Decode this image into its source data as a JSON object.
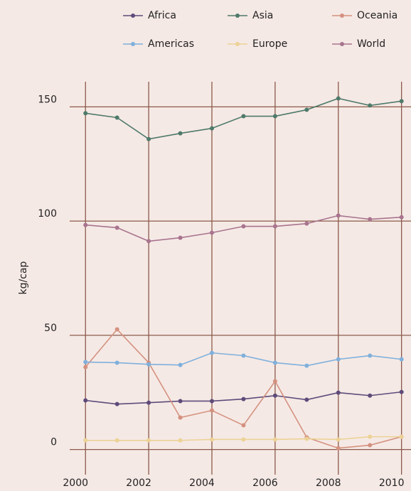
{
  "chart_data": {
    "type": "line",
    "x": [
      2000,
      2001,
      2002,
      2003,
      2004,
      2005,
      2006,
      2007,
      2008,
      2009,
      2010
    ],
    "y_label": "kg/cap",
    "series": [
      {
        "name": "Africa",
        "color": "#5e4b7a",
        "values": [
          21.5,
          19.9,
          20.5,
          21.2,
          21.2,
          22.1,
          23.6,
          21.8,
          24.9,
          23.6,
          25.2
        ]
      },
      {
        "name": "Asia",
        "color": "#4e7a6a",
        "values": [
          147.2,
          145.3,
          135.9,
          138.4,
          140.6,
          145.9,
          145.9,
          148.7,
          153.7,
          150.6,
          152.5
        ]
      },
      {
        "name": "Oceania",
        "color": "#d4917f",
        "values": [
          36.1,
          52.6,
          38.0,
          14.0,
          17.1,
          10.6,
          29.9,
          5.3,
          0.6,
          1.9,
          5.6
        ]
      },
      {
        "name": "Americas",
        "color": "#7fb0dc",
        "values": [
          38.3,
          38.0,
          37.3,
          37.0,
          42.3,
          41.1,
          38.0,
          36.7,
          39.5,
          41.1,
          39.5
        ]
      },
      {
        "name": "Europe",
        "color": "#ecd296",
        "values": [
          4.0,
          4.0,
          4.0,
          4.0,
          4.4,
          4.4,
          4.4,
          4.7,
          4.4,
          5.6,
          5.6
        ]
      },
      {
        "name": "World",
        "color": "#a8748e",
        "values": [
          98.3,
          97.1,
          91.2,
          92.7,
          94.9,
          97.7,
          97.7,
          98.9,
          102.4,
          100.8,
          101.7
        ]
      }
    ],
    "xlim": [
      1999.5,
      2010.3
    ],
    "xticks": [
      2000,
      2002,
      2004,
      2006,
      2008,
      2010
    ],
    "ylim": [
      -11,
      161
    ],
    "yticks": [
      0,
      50,
      100,
      150
    ],
    "grid": true,
    "legend": "top",
    "grid_color": "#8b5a4a"
  }
}
